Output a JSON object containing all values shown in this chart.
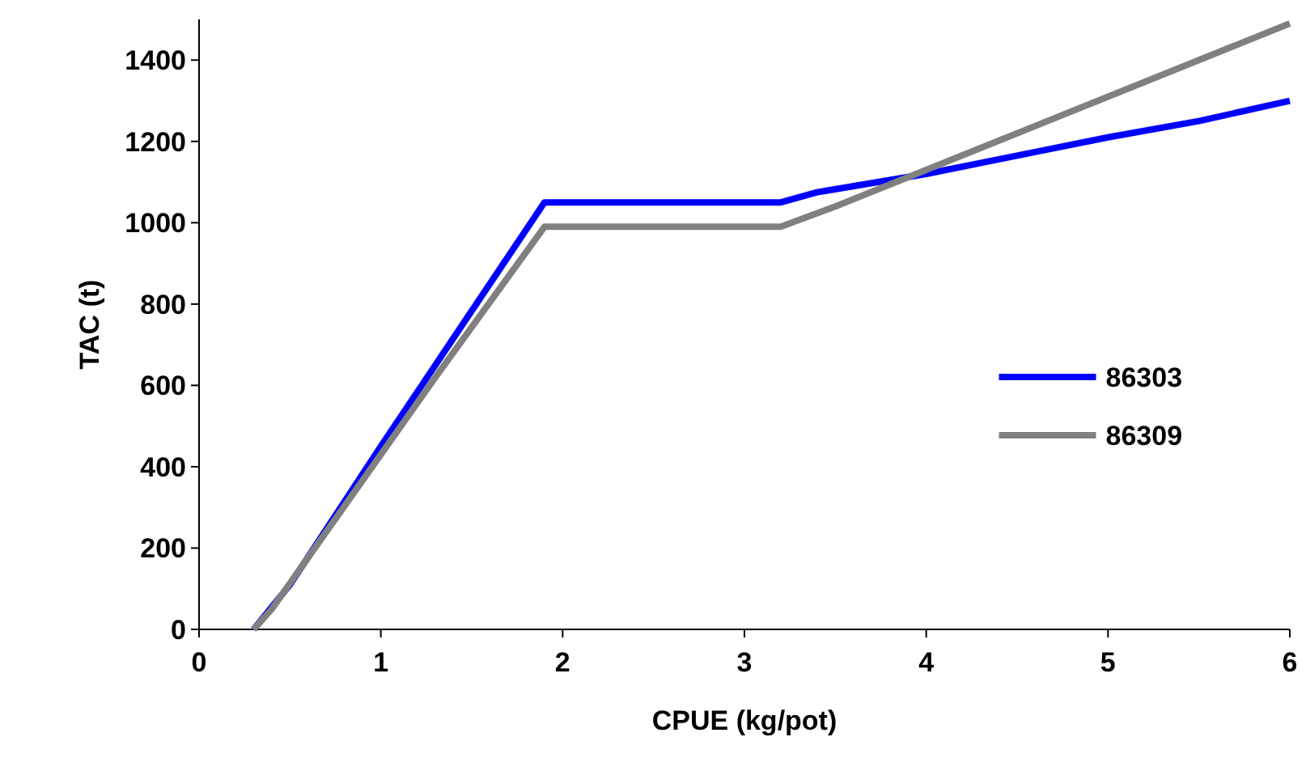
{
  "chart_data": {
    "type": "line",
    "xlabel": "CPUE (kg/pot)",
    "ylabel": "TAC (t)",
    "xlim": [
      0,
      6
    ],
    "ylim": [
      0,
      1500
    ],
    "xticks": [
      0,
      1,
      2,
      3,
      4,
      5,
      6
    ],
    "yticks": [
      0,
      200,
      400,
      600,
      800,
      1000,
      1200,
      1400
    ],
    "grid": false,
    "legend": "right",
    "line_style": "solid",
    "series": [
      {
        "name": "86303",
        "color": "#0000ff",
        "x": [
          0.3,
          0.5,
          1,
          1.3,
          1.9,
          3.2,
          3.4,
          4,
          4.5,
          5,
          5.5,
          6
        ],
        "values": [
          0,
          110,
          450,
          650,
          1050,
          1050,
          1075,
          1120,
          1165,
          1210,
          1250,
          1300
        ]
      },
      {
        "name": "86309",
        "color": "#808080",
        "x": [
          0.3,
          0.4,
          1,
          1.3,
          1.9,
          3.2,
          3.5,
          4,
          4.5,
          5,
          5.5,
          6
        ],
        "values": [
          0,
          50,
          430,
          620,
          990,
          990,
          1040,
          1130,
          1220,
          1310,
          1400,
          1490
        ]
      }
    ]
  }
}
